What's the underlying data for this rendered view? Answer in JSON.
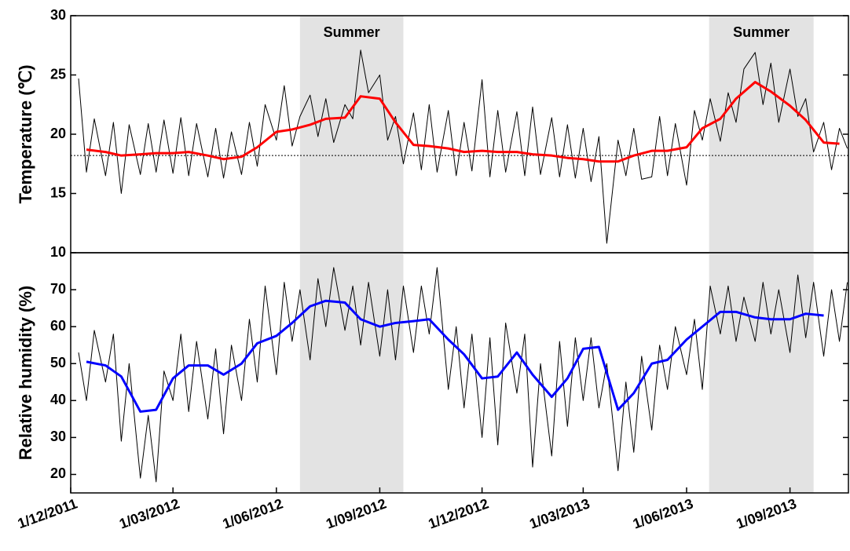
{
  "chart_data": [
    {
      "type": "line",
      "ylabel": "Temperature (℃)",
      "xlim": [
        "2011-12-01",
        "2013-10-23"
      ],
      "ylim": [
        10,
        30
      ],
      "yticks": [
        10,
        15,
        20,
        25,
        30
      ],
      "reference_line": 18.2,
      "shaded_regions": [
        {
          "start": "2012-06-22",
          "end": "2012-09-22",
          "label": "Summer"
        },
        {
          "start": "2013-06-21",
          "end": "2013-09-22",
          "label": "Summer"
        }
      ],
      "series": [
        {
          "color": "#000000",
          "linewidth": 1,
          "x": [
            "2011-12-08",
            "2011-12-15",
            "2011-12-22",
            "2012-01-01",
            "2012-01-08",
            "2012-01-15",
            "2012-01-22",
            "2012-02-01",
            "2012-02-08",
            "2012-02-15",
            "2012-02-22",
            "2012-03-01",
            "2012-03-08",
            "2012-03-15",
            "2012-03-22",
            "2012-04-01",
            "2012-04-08",
            "2012-04-15",
            "2012-04-22",
            "2012-05-01",
            "2012-05-08",
            "2012-05-15",
            "2012-05-22",
            "2012-06-01",
            "2012-06-08",
            "2012-06-15",
            "2012-06-22",
            "2012-07-01",
            "2012-07-08",
            "2012-07-15",
            "2012-07-22",
            "2012-08-01",
            "2012-08-08",
            "2012-08-15",
            "2012-08-22",
            "2012-09-01",
            "2012-09-08",
            "2012-09-15",
            "2012-09-22",
            "2012-10-01",
            "2012-10-08",
            "2012-10-15",
            "2012-10-22",
            "2012-11-01",
            "2012-11-08",
            "2012-11-15",
            "2012-11-22",
            "2012-12-01",
            "2012-12-08",
            "2012-12-15",
            "2012-12-22",
            "2013-01-01",
            "2013-01-08",
            "2013-01-15",
            "2013-01-22",
            "2013-02-01",
            "2013-02-08",
            "2013-02-15",
            "2013-02-22",
            "2013-03-01",
            "2013-03-08",
            "2013-03-15",
            "2013-03-22",
            "2013-04-01",
            "2013-04-08",
            "2013-04-15",
            "2013-04-22",
            "2013-05-01",
            "2013-05-08",
            "2013-05-15",
            "2013-05-22",
            "2013-06-01",
            "2013-06-08",
            "2013-06-15",
            "2013-06-22",
            "2013-07-01",
            "2013-07-08",
            "2013-07-15",
            "2013-07-22",
            "2013-08-01",
            "2013-08-08",
            "2013-08-15",
            "2013-08-22",
            "2013-09-01",
            "2013-09-08",
            "2013-09-15",
            "2013-09-22",
            "2013-10-01",
            "2013-10-08",
            "2013-10-15",
            "2013-10-22"
          ],
          "values": [
            24.7,
            16.8,
            21.3,
            16.5,
            21.0,
            15.0,
            20.8,
            16.6,
            20.9,
            16.8,
            21.2,
            16.7,
            21.4,
            16.5,
            20.9,
            16.4,
            20.5,
            16.3,
            20.2,
            16.6,
            21.0,
            17.3,
            22.5,
            19.5,
            24.1,
            19.0,
            21.5,
            23.3,
            19.8,
            23.0,
            19.3,
            22.5,
            21.3,
            27.1,
            23.5,
            25.0,
            19.5,
            21.5,
            17.5,
            21.8,
            17.0,
            22.5,
            16.8,
            22.0,
            16.5,
            21.0,
            16.9,
            24.6,
            16.4,
            22.0,
            16.8,
            21.9,
            16.5,
            22.3,
            16.6,
            21.4,
            16.4,
            20.8,
            16.3,
            20.5,
            16.0,
            19.8,
            10.8,
            19.5,
            16.5,
            20.5,
            16.2,
            16.4,
            21.5,
            16.5,
            20.9,
            15.7,
            22.0,
            19.5,
            23.0,
            19.4,
            23.5,
            21.0,
            25.5,
            26.9,
            22.5,
            26.0,
            21.0,
            25.5,
            21.5,
            23.0,
            18.5,
            21.0,
            17.0,
            20.5,
            18.8
          ]
        },
        {
          "color": "#ff0000",
          "linewidth": 3,
          "x": [
            "2011-12-15",
            "2012-01-01",
            "2012-01-15",
            "2012-02-01",
            "2012-02-15",
            "2012-03-01",
            "2012-03-15",
            "2012-04-01",
            "2012-04-15",
            "2012-05-01",
            "2012-05-15",
            "2012-06-01",
            "2012-06-15",
            "2012-07-01",
            "2012-07-15",
            "2012-08-01",
            "2012-08-15",
            "2012-09-01",
            "2012-09-15",
            "2012-10-01",
            "2012-10-15",
            "2012-11-01",
            "2012-11-15",
            "2012-12-01",
            "2012-12-15",
            "2013-01-01",
            "2013-01-15",
            "2013-02-01",
            "2013-02-15",
            "2013-03-01",
            "2013-03-15",
            "2013-04-01",
            "2013-04-15",
            "2013-05-01",
            "2013-05-15",
            "2013-06-01",
            "2013-06-15",
            "2013-07-01",
            "2013-07-15",
            "2013-08-01",
            "2013-08-15",
            "2013-09-01",
            "2013-09-15",
            "2013-10-01",
            "2013-10-15"
          ],
          "values": [
            18.7,
            18.5,
            18.2,
            18.3,
            18.4,
            18.4,
            18.5,
            18.2,
            17.9,
            18.1,
            18.9,
            20.2,
            20.4,
            20.8,
            21.3,
            21.4,
            23.2,
            23.0,
            21.0,
            19.1,
            19.0,
            18.8,
            18.5,
            18.6,
            18.5,
            18.5,
            18.3,
            18.2,
            18.0,
            17.9,
            17.7,
            17.7,
            18.2,
            18.6,
            18.6,
            18.9,
            20.5,
            21.3,
            23.0,
            24.4,
            23.6,
            22.4,
            21.2,
            19.3,
            19.2
          ]
        }
      ]
    },
    {
      "type": "line",
      "ylabel": "Relative humidity (%)",
      "xlim": [
        "2011-12-01",
        "2013-10-23"
      ],
      "ylim": [
        15,
        80
      ],
      "yticks": [
        20,
        30,
        40,
        50,
        60,
        70
      ],
      "xticks": [
        {
          "value": "2011-12-01",
          "label": "1/12/2011"
        },
        {
          "value": "2012-03-01",
          "label": "1/03/2012"
        },
        {
          "value": "2012-06-01",
          "label": "1/06/2012"
        },
        {
          "value": "2012-09-01",
          "label": "1/09/2012"
        },
        {
          "value": "2012-12-01",
          "label": "1/12/2012"
        },
        {
          "value": "2013-03-01",
          "label": "1/03/2013"
        },
        {
          "value": "2013-06-01",
          "label": "1/06/2013"
        },
        {
          "value": "2013-09-01",
          "label": "1/09/2013"
        }
      ],
      "shaded_regions": [
        {
          "start": "2012-06-22",
          "end": "2012-09-22"
        },
        {
          "start": "2013-06-21",
          "end": "2013-09-22"
        }
      ],
      "series": [
        {
          "color": "#000000",
          "linewidth": 1,
          "x": [
            "2011-12-08",
            "2011-12-15",
            "2011-12-22",
            "2012-01-01",
            "2012-01-08",
            "2012-01-15",
            "2012-01-22",
            "2012-02-01",
            "2012-02-08",
            "2012-02-15",
            "2012-02-22",
            "2012-03-01",
            "2012-03-08",
            "2012-03-15",
            "2012-03-22",
            "2012-04-01",
            "2012-04-08",
            "2012-04-15",
            "2012-04-22",
            "2012-05-01",
            "2012-05-08",
            "2012-05-15",
            "2012-05-22",
            "2012-06-01",
            "2012-06-08",
            "2012-06-15",
            "2012-06-22",
            "2012-07-01",
            "2012-07-08",
            "2012-07-15",
            "2012-07-22",
            "2012-08-01",
            "2012-08-08",
            "2012-08-15",
            "2012-08-22",
            "2012-09-01",
            "2012-09-08",
            "2012-09-15",
            "2012-09-22",
            "2012-10-01",
            "2012-10-08",
            "2012-10-15",
            "2012-10-22",
            "2012-11-01",
            "2012-11-08",
            "2012-11-15",
            "2012-11-22",
            "2012-12-01",
            "2012-12-08",
            "2012-12-15",
            "2012-12-22",
            "2013-01-01",
            "2013-01-08",
            "2013-01-15",
            "2013-01-22",
            "2013-02-01",
            "2013-02-08",
            "2013-02-15",
            "2013-02-22",
            "2013-03-01",
            "2013-03-08",
            "2013-03-15",
            "2013-03-22",
            "2013-04-01",
            "2013-04-08",
            "2013-04-15",
            "2013-04-22",
            "2013-05-01",
            "2013-05-08",
            "2013-05-15",
            "2013-05-22",
            "2013-06-01",
            "2013-06-08",
            "2013-06-15",
            "2013-06-22",
            "2013-07-01",
            "2013-07-08",
            "2013-07-15",
            "2013-07-22",
            "2013-08-01",
            "2013-08-08",
            "2013-08-15",
            "2013-08-22",
            "2013-09-01",
            "2013-09-08",
            "2013-09-15",
            "2013-09-22",
            "2013-10-01",
            "2013-10-08",
            "2013-10-15",
            "2013-10-22"
          ],
          "values": [
            53,
            40,
            59,
            45,
            58,
            29,
            50,
            19,
            36,
            18,
            48,
            40,
            58,
            37,
            56,
            35,
            54,
            31,
            55,
            40,
            62,
            45,
            71,
            47,
            72,
            56,
            70,
            51,
            73,
            60,
            76,
            59,
            71,
            55,
            72,
            52,
            70,
            51,
            71,
            53,
            71,
            58,
            76,
            43,
            60,
            38,
            58,
            30,
            57,
            28,
            61,
            42,
            58,
            22,
            50,
            25,
            56,
            33,
            57,
            40,
            57,
            38,
            50,
            21,
            45,
            26,
            52,
            32,
            55,
            43,
            60,
            47,
            62,
            43,
            71,
            58,
            71,
            56,
            68,
            56,
            72,
            58,
            70,
            53,
            74,
            57,
            72,
            52,
            70,
            56,
            72
          ]
        },
        {
          "color": "#0000ff",
          "linewidth": 3,
          "x": [
            "2011-12-15",
            "2012-01-01",
            "2012-01-15",
            "2012-02-01",
            "2012-02-15",
            "2012-03-01",
            "2012-03-15",
            "2012-04-01",
            "2012-04-15",
            "2012-05-01",
            "2012-05-15",
            "2012-06-01",
            "2012-06-15",
            "2012-07-01",
            "2012-07-15",
            "2012-08-01",
            "2012-08-15",
            "2012-09-01",
            "2012-09-15",
            "2012-10-01",
            "2012-10-15",
            "2012-11-01",
            "2012-11-15",
            "2012-12-01",
            "2012-12-15",
            "2013-01-01",
            "2013-01-15",
            "2013-02-01",
            "2013-02-15",
            "2013-03-01",
            "2013-03-15",
            "2013-04-01",
            "2013-04-15",
            "2013-05-01",
            "2013-05-15",
            "2013-06-01",
            "2013-06-15",
            "2013-07-01",
            "2013-07-15",
            "2013-08-01",
            "2013-08-15",
            "2013-09-01",
            "2013-09-15",
            "2013-10-01"
          ],
          "values": [
            50.5,
            49.5,
            46.5,
            37,
            37.5,
            46,
            49.5,
            49.5,
            47,
            50,
            55.5,
            57.5,
            61,
            65.5,
            67,
            66.5,
            62,
            60,
            61,
            61.5,
            62,
            56.5,
            52.5,
            46,
            46.5,
            53,
            47,
            41,
            46,
            54,
            54.5,
            37.5,
            42,
            50,
            51,
            56.5,
            60,
            64,
            64,
            62.5,
            62,
            62,
            63.5,
            63
          ]
        }
      ]
    }
  ]
}
